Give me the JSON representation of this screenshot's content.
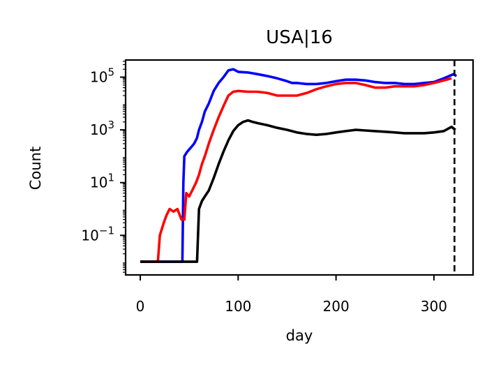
{
  "chart_data": {
    "type": "line",
    "title": "USA|16",
    "xlabel": "day",
    "ylabel": "Count",
    "xlim": [
      -15,
      340
    ],
    "ylim_log10": [
      -2.5,
      5.65
    ],
    "yscale": "log",
    "xticks": [
      0,
      100,
      200,
      300
    ],
    "xtick_labels": [
      "0",
      "100",
      "200",
      "300"
    ],
    "yticks_log10": [
      -1,
      1,
      3,
      5
    ],
    "ytick_labels": [
      {
        "base": "10",
        "exp": "−1"
      },
      {
        "base": "10",
        "exp": "1"
      },
      {
        "base": "10",
        "exp": "3"
      },
      {
        "base": "10",
        "exp": "5"
      }
    ],
    "grid": false,
    "vline": {
      "x": 321,
      "style": "dashed",
      "color": "#000000"
    },
    "series": [
      {
        "color": "#0000ff",
        "points": [
          [
            0,
            0.01
          ],
          [
            43,
            0.01
          ],
          [
            44,
            10
          ],
          [
            45,
            100
          ],
          [
            48,
            150
          ],
          [
            52,
            220
          ],
          [
            55,
            300
          ],
          [
            58,
            500
          ],
          [
            60,
            1000
          ],
          [
            63,
            2000
          ],
          [
            66,
            5000
          ],
          [
            70,
            10000
          ],
          [
            75,
            30000
          ],
          [
            80,
            60000
          ],
          [
            85,
            100000
          ],
          [
            90,
            180000
          ],
          [
            95,
            200000
          ],
          [
            100,
            160000
          ],
          [
            110,
            150000
          ],
          [
            120,
            130000
          ],
          [
            130,
            110000
          ],
          [
            140,
            90000
          ],
          [
            150,
            70000
          ],
          [
            155,
            60000
          ],
          [
            160,
            60000
          ],
          [
            170,
            55000
          ],
          [
            180,
            55000
          ],
          [
            190,
            60000
          ],
          [
            200,
            70000
          ],
          [
            210,
            80000
          ],
          [
            220,
            80000
          ],
          [
            230,
            75000
          ],
          [
            240,
            65000
          ],
          [
            250,
            60000
          ],
          [
            260,
            60000
          ],
          [
            270,
            55000
          ],
          [
            280,
            55000
          ],
          [
            290,
            60000
          ],
          [
            300,
            65000
          ],
          [
            310,
            90000
          ],
          [
            320,
            130000
          ],
          [
            323,
            110000
          ]
        ]
      },
      {
        "color": "#ff0000",
        "points": [
          [
            0,
            0.01
          ],
          [
            18,
            0.01
          ],
          [
            20,
            0.1
          ],
          [
            24,
            0.3
          ],
          [
            27,
            0.6
          ],
          [
            30,
            1
          ],
          [
            34,
            0.8
          ],
          [
            38,
            1
          ],
          [
            42,
            0.4
          ],
          [
            45,
            0.4
          ],
          [
            47,
            4
          ],
          [
            50,
            3
          ],
          [
            53,
            5
          ],
          [
            57,
            10
          ],
          [
            60,
            20
          ],
          [
            63,
            50
          ],
          [
            66,
            100
          ],
          [
            70,
            300
          ],
          [
            75,
            1000
          ],
          [
            80,
            3000
          ],
          [
            85,
            8000
          ],
          [
            90,
            20000
          ],
          [
            95,
            28000
          ],
          [
            100,
            30000
          ],
          [
            110,
            28000
          ],
          [
            120,
            28000
          ],
          [
            130,
            25000
          ],
          [
            140,
            20000
          ],
          [
            150,
            20000
          ],
          [
            160,
            20000
          ],
          [
            170,
            25000
          ],
          [
            180,
            35000
          ],
          [
            190,
            45000
          ],
          [
            200,
            55000
          ],
          [
            210,
            60000
          ],
          [
            220,
            60000
          ],
          [
            230,
            50000
          ],
          [
            240,
            40000
          ],
          [
            250,
            40000
          ],
          [
            260,
            45000
          ],
          [
            270,
            45000
          ],
          [
            280,
            45000
          ],
          [
            290,
            50000
          ],
          [
            300,
            60000
          ],
          [
            310,
            75000
          ],
          [
            318,
            90000
          ]
        ]
      },
      {
        "color": "#000000",
        "points": [
          [
            0,
            0.01
          ],
          [
            58,
            0.01
          ],
          [
            60,
            1
          ],
          [
            63,
            2
          ],
          [
            66,
            3
          ],
          [
            70,
            5
          ],
          [
            75,
            15
          ],
          [
            80,
            50
          ],
          [
            85,
            150
          ],
          [
            90,
            400
          ],
          [
            95,
            900
          ],
          [
            100,
            1500
          ],
          [
            105,
            2000
          ],
          [
            110,
            2300
          ],
          [
            115,
            2000
          ],
          [
            120,
            1800
          ],
          [
            130,
            1500
          ],
          [
            140,
            1200
          ],
          [
            150,
            1000
          ],
          [
            160,
            800
          ],
          [
            170,
            700
          ],
          [
            180,
            650
          ],
          [
            190,
            700
          ],
          [
            200,
            800
          ],
          [
            210,
            900
          ],
          [
            220,
            1000
          ],
          [
            230,
            950
          ],
          [
            240,
            900
          ],
          [
            250,
            850
          ],
          [
            260,
            800
          ],
          [
            270,
            750
          ],
          [
            280,
            750
          ],
          [
            290,
            750
          ],
          [
            300,
            800
          ],
          [
            310,
            900
          ],
          [
            318,
            1300
          ],
          [
            322,
            1000
          ]
        ]
      }
    ]
  }
}
